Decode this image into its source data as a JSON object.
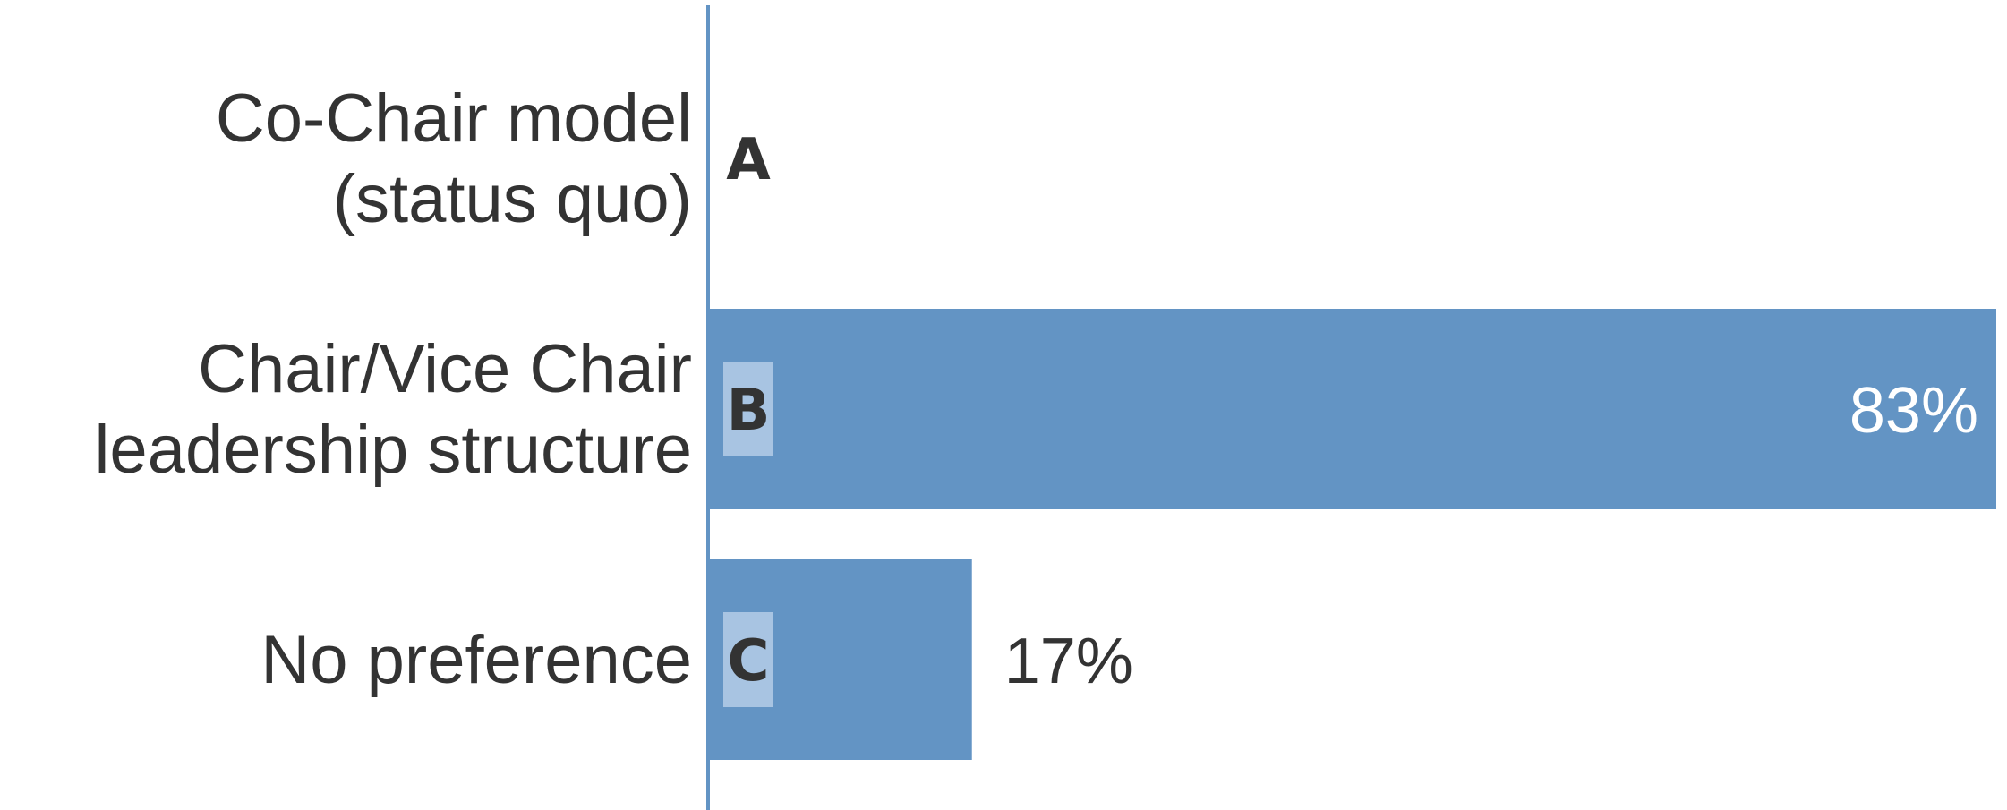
{
  "chart_data": {
    "type": "bar",
    "orientation": "horizontal",
    "categories": [
      [
        "Co-Chair model",
        "(status quo)"
      ],
      [
        "Chair/Vice Chair",
        "leadership structure"
      ],
      [
        "No preference"
      ]
    ],
    "option_letters": [
      "A",
      "B",
      "C"
    ],
    "values": [
      0,
      83,
      17
    ],
    "value_labels": [
      "",
      "83%",
      "17%"
    ],
    "xlim": [
      0,
      83
    ],
    "grid": false,
    "legend": "none",
    "colors": {
      "bar": "#6394c4",
      "letter_box": "#a8c4e2",
      "axis": "#6394c4",
      "text": "#333333",
      "inside_label": "#ffffff"
    }
  }
}
